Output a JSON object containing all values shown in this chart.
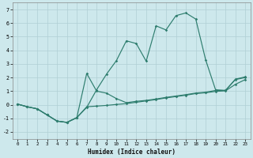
{
  "title": "",
  "xlabel": "Humidex (Indice chaleur)",
  "ylabel": "",
  "bg_color": "#cde8ec",
  "grid_color": "#b0cfd4",
  "line_color": "#2e7d6e",
  "x_values": [
    0,
    1,
    2,
    3,
    4,
    5,
    6,
    7,
    8,
    9,
    10,
    11,
    12,
    13,
    14,
    15,
    16,
    17,
    18,
    19,
    20,
    21,
    22,
    23
  ],
  "series_main": [
    0.05,
    -0.15,
    -0.3,
    -0.75,
    -1.2,
    -1.3,
    -0.95,
    -0.2,
    1.1,
    2.25,
    3.25,
    4.7,
    4.5,
    3.2,
    5.8,
    5.5,
    6.55,
    6.75,
    6.3,
    3.3,
    1.1,
    1.05,
    1.85,
    2.0
  ],
  "series_lower": [
    0.05,
    -0.15,
    -0.3,
    -0.75,
    -1.2,
    -1.3,
    -0.95,
    -0.15,
    -0.1,
    -0.05,
    0.02,
    0.08,
    0.18,
    0.28,
    0.38,
    0.5,
    0.6,
    0.7,
    0.82,
    0.88,
    0.98,
    1.02,
    1.5,
    1.85
  ],
  "series_mid": [
    0.05,
    -0.15,
    -0.3,
    -0.75,
    -1.2,
    -1.3,
    -0.95,
    2.3,
    1.0,
    0.85,
    0.45,
    0.15,
    0.25,
    0.32,
    0.42,
    0.54,
    0.64,
    0.74,
    0.86,
    0.92,
    1.05,
    1.05,
    1.88,
    2.05
  ],
  "ylim": [
    -2.5,
    7.5
  ],
  "xlim": [
    -0.5,
    23.5
  ],
  "yticks": [
    -2,
    -1,
    0,
    1,
    2,
    3,
    4,
    5,
    6,
    7
  ],
  "xticks": [
    0,
    1,
    2,
    3,
    4,
    5,
    6,
    7,
    8,
    9,
    10,
    11,
    12,
    13,
    14,
    15,
    16,
    17,
    18,
    19,
    20,
    21,
    22,
    23
  ]
}
